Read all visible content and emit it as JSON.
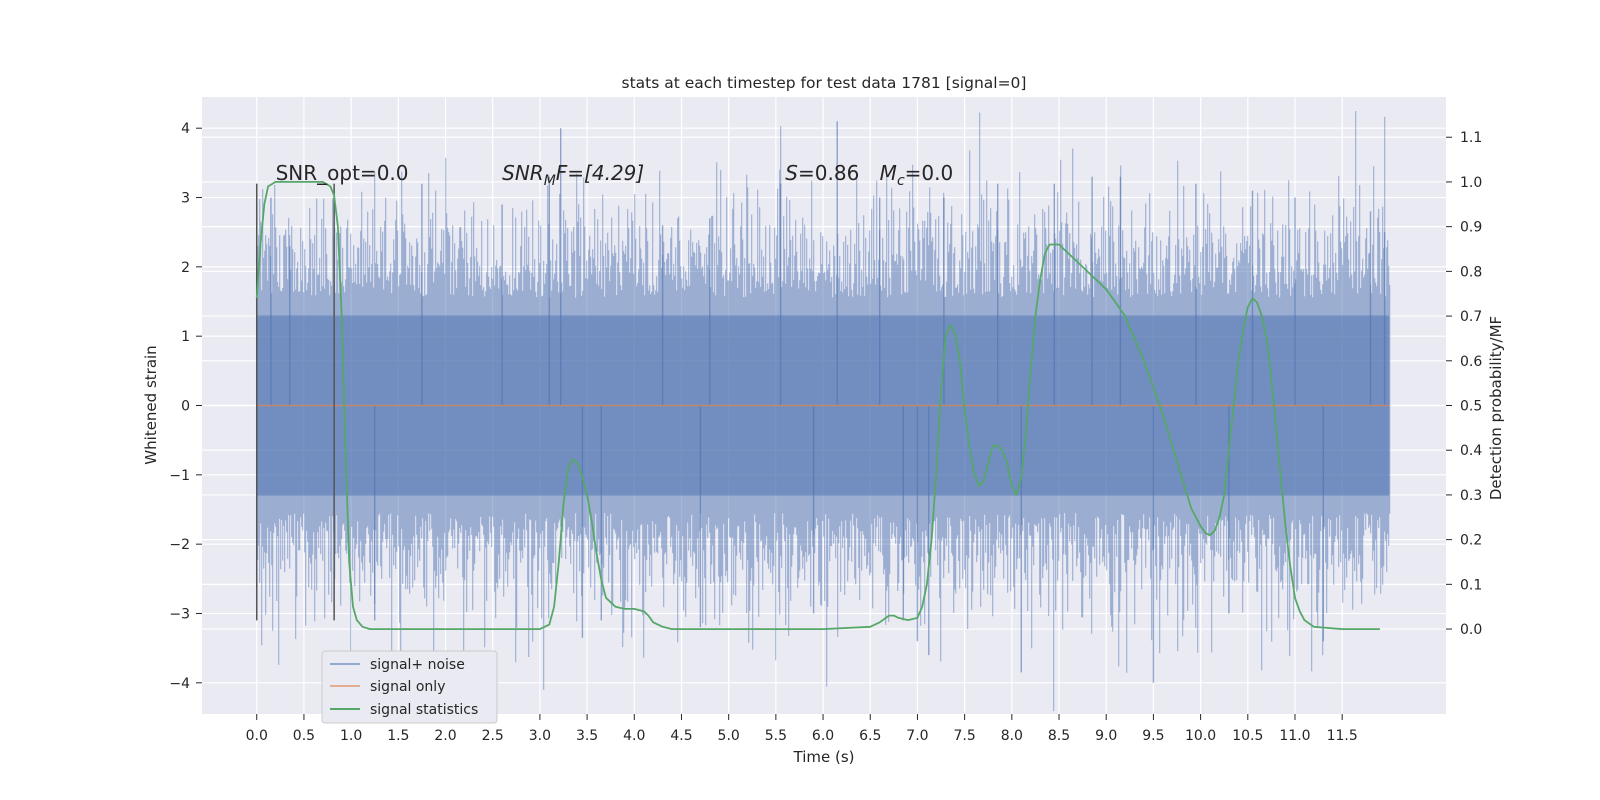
{
  "chart_data": {
    "type": "line",
    "title": "stats at each timestep for test data 1781 [signal=0]",
    "xlabel": "Time (s)",
    "ylabel": "Whitened strain",
    "y2label": "Detection probability/MF",
    "xlim": [
      -0.58,
      12.6
    ],
    "ylim": [
      -4.45,
      4.45
    ],
    "y2lim": [
      -0.19,
      1.19
    ],
    "x_ticks": [
      "0.0",
      "0.5",
      "1.0",
      "1.5",
      "2.0",
      "2.5",
      "3.0",
      "3.5",
      "4.0",
      "4.5",
      "5.0",
      "5.5",
      "6.0",
      "6.5",
      "7.0",
      "7.5",
      "8.0",
      "8.5",
      "9.0",
      "9.5",
      "10.0",
      "10.5",
      "11.0",
      "11.5"
    ],
    "y_ticks": [
      "−4",
      "−3",
      "−2",
      "−1",
      "0",
      "1",
      "2",
      "3",
      "4"
    ],
    "y2_ticks": [
      "0.0",
      "0.1",
      "0.2",
      "0.3",
      "0.4",
      "0.5",
      "0.6",
      "0.7",
      "0.8",
      "0.9",
      "1.0",
      "1.1"
    ],
    "grid": true,
    "legend_position": "lower-left",
    "annotations": [
      {
        "id": "snr-opt",
        "parts": [
          {
            "text": "SNR_opt=0.0",
            "italic": false
          }
        ],
        "x": 0.2,
        "y2": 1.0
      },
      {
        "id": "snr-mf",
        "parts": [
          {
            "text": "SNR",
            "italic": true
          },
          {
            "text": "M",
            "italic": true,
            "sub": true
          },
          {
            "text": "F=[4.29]",
            "italic": true
          }
        ],
        "x": 2.6,
        "y2": 1.0
      },
      {
        "id": "s-value",
        "parts": [
          {
            "text": "S",
            "italic": true
          },
          {
            "text": "=0.86",
            "italic": false
          }
        ],
        "x": 5.6,
        "y2": 1.0
      },
      {
        "id": "mc-value",
        "parts": [
          {
            "text": "M",
            "italic": true
          },
          {
            "text": "c",
            "italic": true,
            "sub": true
          },
          {
            "text": "=0.0",
            "italic": false
          }
        ],
        "x": 6.6,
        "y2": 1.0
      }
    ],
    "vertical_markers": [
      {
        "x": 0.0,
        "y_range": [
          -3.1,
          3.2
        ]
      },
      {
        "x": 0.82,
        "y_range": [
          -3.1,
          3.2
        ]
      }
    ],
    "series": [
      {
        "name": "signal+ noise",
        "color": "#4c72b0",
        "axis": "left",
        "x_range": [
          0.0,
          12.0
        ],
        "sample_rate_hz": 2048,
        "core_band": [
          -1.3,
          1.3
        ],
        "spike_extremes": [
          [
            0.15,
            3.0
          ],
          [
            0.35,
            2.3
          ],
          [
            1.25,
            -3.1
          ],
          [
            1.75,
            3.2
          ],
          [
            2.6,
            2.9
          ],
          [
            3.1,
            3.3
          ],
          [
            3.22,
            4.0
          ],
          [
            3.45,
            -3.35
          ],
          [
            3.65,
            -3.1
          ],
          [
            4.3,
            2.6
          ],
          [
            4.7,
            -3.2
          ],
          [
            4.8,
            2.7
          ],
          [
            5.55,
            3.2
          ],
          [
            5.9,
            -3.0
          ],
          [
            6.15,
            4.1
          ],
          [
            6.6,
            3.0
          ],
          [
            6.85,
            -3.1
          ],
          [
            7.0,
            -3.4
          ],
          [
            7.12,
            -3.6
          ],
          [
            7.28,
            3.0
          ],
          [
            7.85,
            3.2
          ],
          [
            8.1,
            -3.85
          ],
          [
            8.45,
            3.2
          ],
          [
            8.85,
            3.3
          ],
          [
            9.15,
            3.3
          ],
          [
            9.5,
            -4.0
          ],
          [
            9.95,
            3.2
          ],
          [
            10.3,
            -3.0
          ],
          [
            10.55,
            3.1
          ],
          [
            11.0,
            3.0
          ],
          [
            11.3,
            -3.4
          ],
          [
            11.8,
            2.8
          ],
          [
            11.95,
            2.5
          ]
        ]
      },
      {
        "name": "signal only",
        "color": "#dd8452",
        "axis": "left",
        "x": [
          0.0,
          12.0
        ],
        "y": [
          0.0,
          0.0
        ]
      },
      {
        "name": "signal statistics",
        "color": "#55a868",
        "axis": "right",
        "x": [
          0.0,
          0.04,
          0.08,
          0.12,
          0.2,
          0.3,
          0.4,
          0.5,
          0.6,
          0.7,
          0.78,
          0.82,
          0.86,
          0.9,
          0.94,
          0.98,
          1.02,
          1.06,
          1.12,
          1.2,
          1.5,
          2.0,
          2.5,
          3.0,
          3.1,
          3.15,
          3.2,
          3.25,
          3.3,
          3.35,
          3.4,
          3.45,
          3.5,
          3.55,
          3.6,
          3.65,
          3.7,
          3.8,
          3.9,
          4.0,
          4.1,
          4.15,
          4.2,
          4.3,
          4.4,
          4.5,
          5.0,
          5.5,
          6.0,
          6.5,
          6.6,
          6.7,
          6.75,
          6.8,
          6.9,
          7.0,
          7.05,
          7.1,
          7.15,
          7.2,
          7.25,
          7.3,
          7.35,
          7.4,
          7.45,
          7.5,
          7.55,
          7.6,
          7.65,
          7.7,
          7.75,
          7.8,
          7.85,
          7.9,
          7.95,
          8.0,
          8.05,
          8.1,
          8.15,
          8.2,
          8.25,
          8.3,
          8.35,
          8.4,
          8.45,
          8.5,
          8.55,
          8.6,
          8.7,
          8.8,
          8.9,
          9.0,
          9.1,
          9.2,
          9.3,
          9.4,
          9.5,
          9.6,
          9.7,
          9.8,
          9.9,
          10.0,
          10.05,
          10.1,
          10.15,
          10.2,
          10.25,
          10.3,
          10.35,
          10.4,
          10.45,
          10.5,
          10.55,
          10.6,
          10.65,
          10.7,
          10.75,
          10.8,
          10.85,
          10.9,
          10.95,
          11.0,
          11.05,
          11.1,
          11.2,
          11.5,
          11.8,
          11.9
        ],
        "y": [
          0.74,
          0.86,
          0.95,
          0.99,
          1.0,
          1.0,
          1.0,
          1.0,
          1.0,
          1.0,
          0.99,
          0.97,
          0.9,
          0.7,
          0.4,
          0.15,
          0.05,
          0.02,
          0.005,
          0.0,
          0.0,
          0.0,
          0.0,
          0.0,
          0.01,
          0.05,
          0.15,
          0.28,
          0.36,
          0.38,
          0.37,
          0.34,
          0.3,
          0.24,
          0.17,
          0.11,
          0.07,
          0.05,
          0.045,
          0.045,
          0.04,
          0.03,
          0.015,
          0.005,
          0.0,
          0.0,
          0.0,
          0.0,
          0.0,
          0.005,
          0.015,
          0.03,
          0.03,
          0.025,
          0.02,
          0.025,
          0.05,
          0.1,
          0.2,
          0.35,
          0.53,
          0.66,
          0.68,
          0.66,
          0.6,
          0.49,
          0.41,
          0.35,
          0.32,
          0.33,
          0.37,
          0.41,
          0.41,
          0.4,
          0.37,
          0.32,
          0.3,
          0.34,
          0.44,
          0.58,
          0.7,
          0.78,
          0.84,
          0.86,
          0.86,
          0.86,
          0.85,
          0.84,
          0.82,
          0.8,
          0.78,
          0.76,
          0.73,
          0.7,
          0.65,
          0.6,
          0.54,
          0.48,
          0.41,
          0.34,
          0.27,
          0.23,
          0.215,
          0.21,
          0.22,
          0.25,
          0.3,
          0.4,
          0.5,
          0.6,
          0.67,
          0.72,
          0.74,
          0.73,
          0.7,
          0.65,
          0.56,
          0.45,
          0.34,
          0.23,
          0.14,
          0.07,
          0.04,
          0.02,
          0.005,
          0.0,
          0.0,
          0.0
        ]
      }
    ]
  }
}
